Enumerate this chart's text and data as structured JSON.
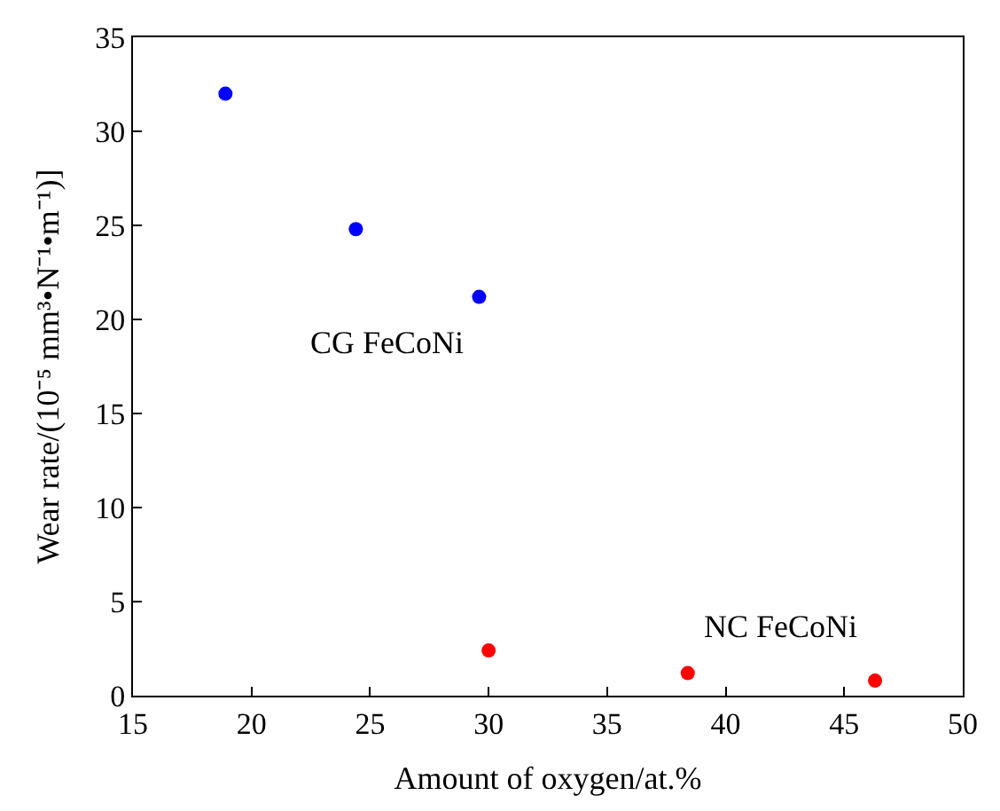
{
  "chart_data": {
    "type": "scatter",
    "xlabel": "Amount of oxygen/at.%",
    "ylabel": "Wear rate/(10⁻⁵ mm³•N⁻¹•m⁻¹)]",
    "series": [
      {
        "name": "CG FeCoNi",
        "color": "#0000ff",
        "x": [
          18.9,
          24.4,
          29.6
        ],
        "values": [
          32.0,
          24.8,
          21.2
        ]
      },
      {
        "name": "NC FeCoNi",
        "color": "#ff0000",
        "x": [
          30.0,
          38.4,
          46.3
        ],
        "values": [
          2.4,
          1.2,
          0.8
        ]
      }
    ],
    "xlim": [
      15,
      50
    ],
    "xticks": [
      15,
      20,
      25,
      30,
      35,
      40,
      45,
      50
    ],
    "ylim": [
      0,
      35
    ],
    "yticks": [
      0,
      5,
      10,
      15,
      20,
      25,
      30,
      35
    ],
    "marker": "circle",
    "legend": false
  }
}
